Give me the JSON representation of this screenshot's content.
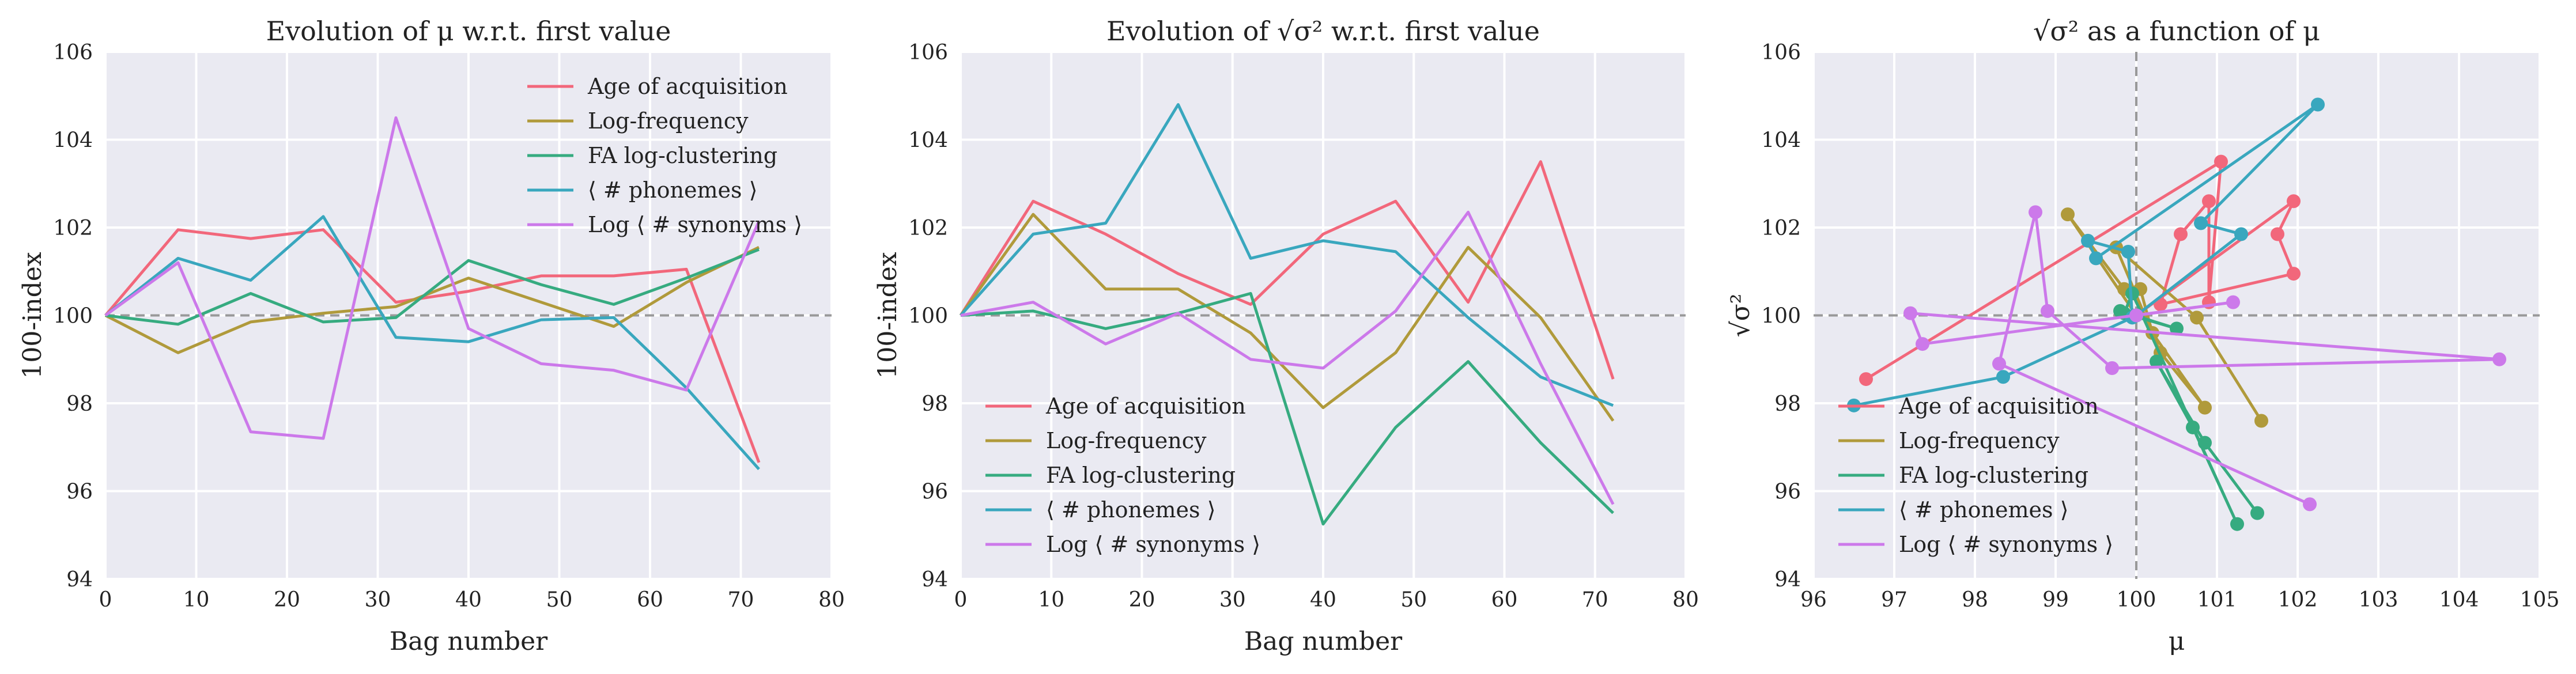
{
  "chart_data": [
    {
      "type": "line",
      "title": "Evolution of μ w.r.t. first value",
      "xlabel": "Bag number",
      "ylabel": "100-index",
      "xlim": [
        0,
        80
      ],
      "ylim": [
        94,
        106
      ],
      "xticks": [
        "0",
        "10",
        "20",
        "30",
        "40",
        "50",
        "60",
        "70",
        "80"
      ],
      "yticks": [
        "94",
        "96",
        "98",
        "100",
        "102",
        "104",
        "106"
      ],
      "grid": true,
      "reference_line": 100,
      "legend_position": "top-right",
      "x": [
        0,
        8,
        16,
        24,
        32,
        40,
        48,
        56,
        64,
        72
      ],
      "series": [
        {
          "name": "Age of acquisition",
          "color": "#f2677b",
          "values": [
            100,
            101.95,
            101.75,
            101.95,
            100.3,
            100.55,
            100.9,
            100.9,
            101.05,
            96.65
          ]
        },
        {
          "name": "Log-frequency",
          "color": "#b09a3b",
          "values": [
            100,
            99.15,
            99.85,
            100.05,
            100.2,
            100.85,
            100.3,
            99.75,
            100.75,
            101.55
          ]
        },
        {
          "name": "FA log-clustering",
          "color": "#36ab80",
          "values": [
            100,
            99.8,
            100.5,
            99.85,
            99.95,
            101.25,
            100.7,
            100.25,
            100.85,
            101.5
          ]
        },
        {
          "name": "⟨ # phonemes ⟩",
          "color": "#39a7be",
          "values": [
            100,
            101.3,
            100.8,
            102.25,
            99.5,
            99.4,
            99.9,
            99.95,
            98.35,
            96.5
          ]
        },
        {
          "name": "Log ⟨ # synonyms ⟩",
          "color": "#cc79ea",
          "values": [
            100,
            101.2,
            97.35,
            97.2,
            104.5,
            99.7,
            98.9,
            98.75,
            98.3,
            102.15
          ]
        }
      ]
    },
    {
      "type": "line",
      "title": "Evolution of √σ² w.r.t. first value",
      "xlabel": "Bag number",
      "ylabel": "100-index",
      "xlim": [
        0,
        80
      ],
      "ylim": [
        94,
        106
      ],
      "xticks": [
        "0",
        "10",
        "20",
        "30",
        "40",
        "50",
        "60",
        "70",
        "80"
      ],
      "yticks": [
        "94",
        "96",
        "98",
        "100",
        "102",
        "104",
        "106"
      ],
      "grid": true,
      "reference_line": 100,
      "legend_position": "bottom-left",
      "x": [
        0,
        8,
        16,
        24,
        32,
        40,
        48,
        56,
        64,
        72
      ],
      "series": [
        {
          "name": "Age of acquisition",
          "color": "#f2677b",
          "values": [
            100,
            102.6,
            101.85,
            100.95,
            100.25,
            101.85,
            102.6,
            100.3,
            103.5,
            98.55
          ]
        },
        {
          "name": "Log-frequency",
          "color": "#b09a3b",
          "values": [
            100,
            102.3,
            100.6,
            100.6,
            99.6,
            97.9,
            99.15,
            101.55,
            99.95,
            97.6
          ]
        },
        {
          "name": "FA log-clustering",
          "color": "#36ab80",
          "values": [
            100,
            100.1,
            99.7,
            100.05,
            100.5,
            95.25,
            97.45,
            98.95,
            97.1,
            95.5
          ]
        },
        {
          "name": "⟨ # phonemes ⟩",
          "color": "#39a7be",
          "values": [
            100,
            101.85,
            102.1,
            104.8,
            101.3,
            101.7,
            101.45,
            99.95,
            98.6,
            97.95
          ]
        },
        {
          "name": "Log ⟨ # synonyms ⟩",
          "color": "#cc79ea",
          "values": [
            100,
            100.3,
            99.35,
            100.05,
            99.0,
            98.8,
            100.1,
            102.35,
            98.9,
            95.7
          ]
        }
      ]
    },
    {
      "type": "scatter",
      "title": "√σ² as a function of μ",
      "xlabel": "μ",
      "ylabel": "√σ²",
      "xlim": [
        96,
        105
      ],
      "ylim": [
        94,
        106
      ],
      "xticks": [
        "96",
        "97",
        "98",
        "99",
        "100",
        "101",
        "102",
        "103",
        "104",
        "105"
      ],
      "yticks": [
        "94",
        "96",
        "98",
        "100",
        "102",
        "104",
        "106"
      ],
      "grid": true,
      "reference_x": 100,
      "reference_y": 100,
      "connected_points": true,
      "legend_position": "bottom-left",
      "series": [
        {
          "name": "Age of acquisition",
          "color": "#f2677b",
          "x": [
            100,
            101.95,
            101.75,
            101.95,
            100.3,
            100.55,
            100.9,
            100.9,
            101.05,
            96.65
          ],
          "y": [
            100,
            102.6,
            101.85,
            100.95,
            100.25,
            101.85,
            102.6,
            100.3,
            103.5,
            98.55
          ]
        },
        {
          "name": "Log-frequency",
          "color": "#b09a3b",
          "x": [
            100,
            99.15,
            99.85,
            100.05,
            100.2,
            100.85,
            100.3,
            99.75,
            100.75,
            101.55
          ],
          "y": [
            100,
            102.3,
            100.6,
            100.6,
            99.6,
            97.9,
            99.15,
            101.55,
            99.95,
            97.6
          ]
        },
        {
          "name": "FA log-clustering",
          "color": "#36ab80",
          "x": [
            100,
            99.8,
            100.5,
            99.85,
            99.95,
            101.25,
            100.7,
            100.25,
            100.85,
            101.5
          ],
          "y": [
            100,
            100.1,
            99.7,
            100.05,
            100.5,
            95.25,
            97.45,
            98.95,
            97.1,
            95.5
          ]
        },
        {
          "name": "⟨ # phonemes ⟩",
          "color": "#39a7be",
          "x": [
            100,
            101.3,
            100.8,
            102.25,
            99.5,
            99.4,
            99.9,
            99.95,
            98.35,
            96.5
          ],
          "y": [
            100,
            101.85,
            102.1,
            104.8,
            101.3,
            101.7,
            101.45,
            99.95,
            98.6,
            97.95
          ]
        },
        {
          "name": "Log ⟨ # synonyms ⟩",
          "color": "#cc79ea",
          "x": [
            100,
            101.2,
            97.35,
            97.2,
            104.5,
            99.7,
            98.9,
            98.75,
            98.3,
            102.15
          ],
          "y": [
            100,
            100.3,
            99.35,
            100.05,
            99.0,
            98.8,
            100.1,
            102.35,
            98.9,
            95.7
          ]
        }
      ]
    }
  ]
}
